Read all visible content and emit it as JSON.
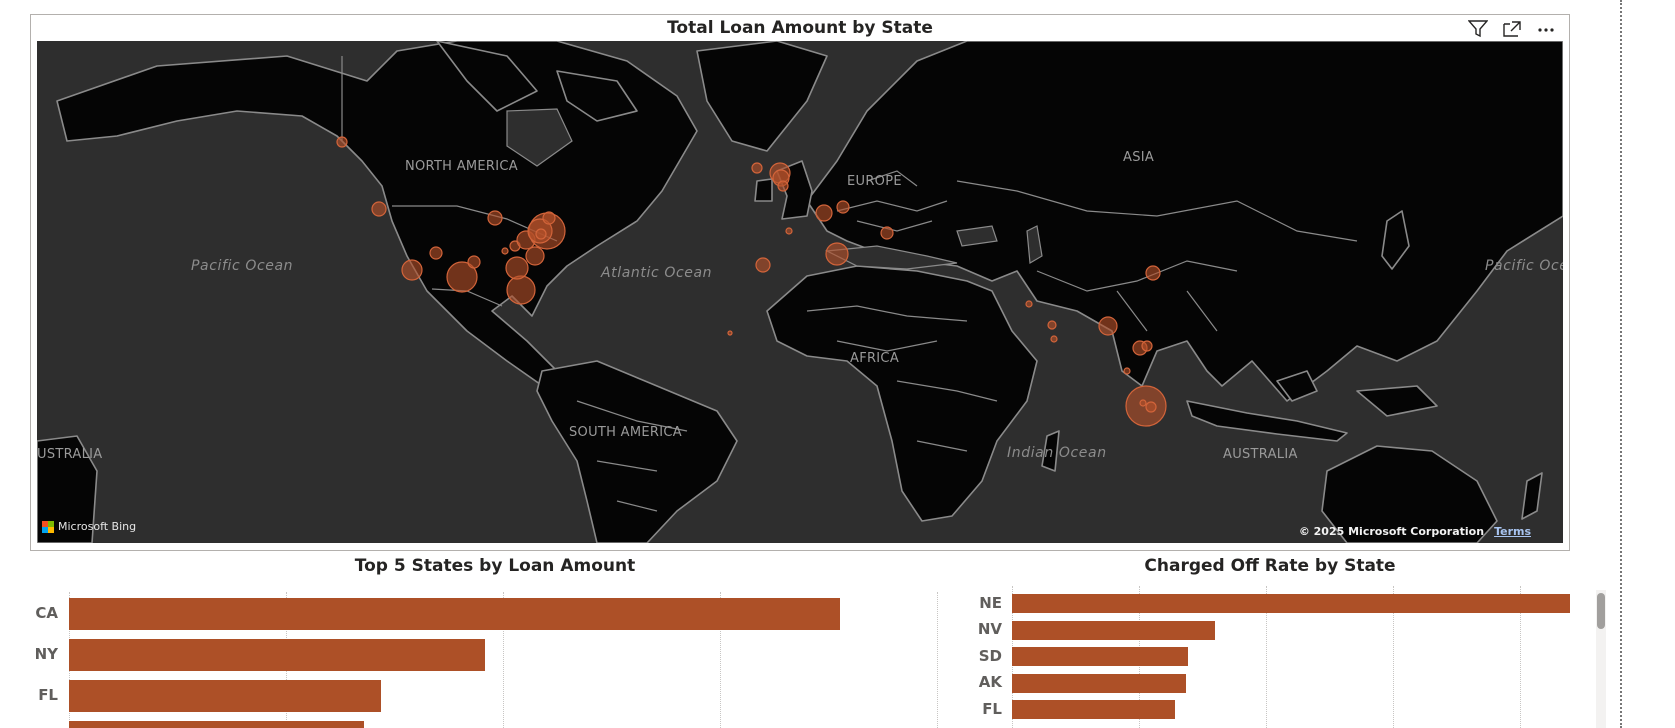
{
  "map": {
    "title": "Total Loan Amount by State",
    "header_icons": [
      "filter-icon",
      "focus-mode-icon",
      "more-options-icon"
    ],
    "labels": {
      "north_america": "NORTH AMERICA",
      "south_america": "SOUTH AMERICA",
      "europe": "EUROPE",
      "africa": "AFRICA",
      "asia": "ASIA",
      "australia": "AUSTRALIA",
      "australia_left": "USTRALIA",
      "pacific_left": "Pacific Ocean",
      "pacific_right": "Pacific Oce",
      "atlantic": "Atlantic Ocean",
      "indian": "Indian Ocean"
    },
    "bing_label": "Microsoft Bing",
    "copyright": "© 2025 Microsoft Corporation",
    "terms": "Terms",
    "bubble_color": "#b5502a"
  },
  "top5_chart": {
    "chart_data": {
      "type": "bar",
      "title": "Top 5 States by Loan Amount",
      "categories": [
        "CA",
        "NY",
        "FL"
      ],
      "values": [
        100,
        54,
        40.5
      ],
      "note_hidden_fourth_value": 38.3,
      "color": "#ad5027"
    }
  },
  "chargeoff_chart": {
    "chart_data": {
      "type": "bar",
      "title": "Charged Off Rate by State",
      "categories": [
        "NE",
        "NV",
        "SD",
        "AK",
        "FL"
      ],
      "values": [
        100,
        36.3,
        31.5,
        31.2,
        29.3
      ],
      "color": "#ad5027"
    }
  }
}
